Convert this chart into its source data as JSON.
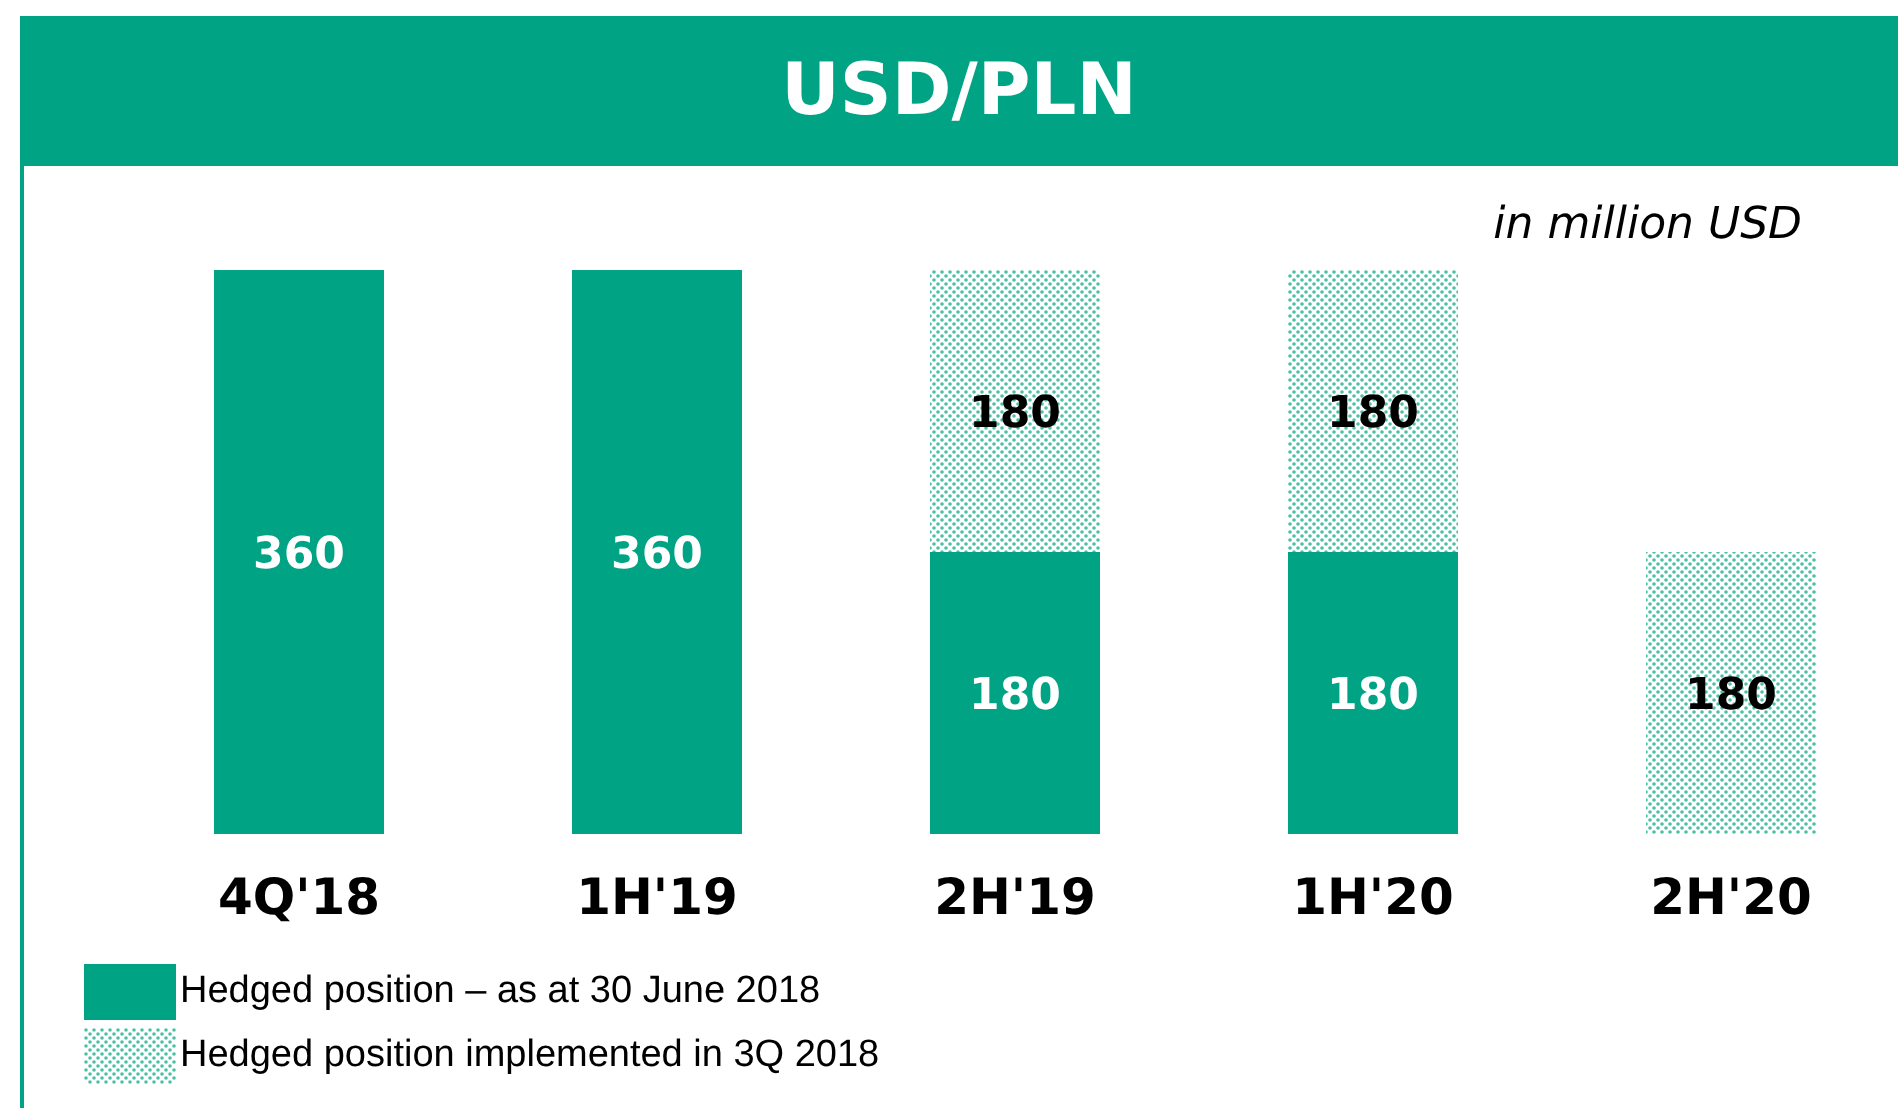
{
  "chart_data": {
    "type": "bar",
    "title": "USD/PLN",
    "annotations": [
      "in million USD"
    ],
    "categories": [
      "4Q'18",
      "1H'19",
      "2H'19",
      "1H'20",
      "2H'20"
    ],
    "stacked": true,
    "data_labels": true,
    "legend": "bottom left",
    "series": [
      {
        "name": "Hedged position – as at 30 June 2018",
        "color": "#00a383",
        "values": [
          360,
          360,
          180,
          180,
          null
        ]
      },
      {
        "name": "Hedged position implemented in 3Q 2018",
        "color": "#4dbfa6",
        "values": [
          null,
          null,
          180,
          180,
          180
        ]
      }
    ]
  }
}
